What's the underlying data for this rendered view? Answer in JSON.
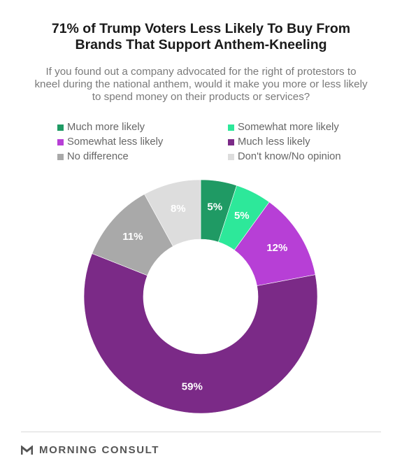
{
  "header": {
    "title_line1": "71% of Trump Voters Less Likely To Buy From",
    "title_line2": "Brands That Support Anthem-Kneeling",
    "subtitle_line1": "If you found out a company advocated for the right of protestors to",
    "subtitle_line2": "kneel during the national anthem, would it make you more or less likely",
    "subtitle_line3": "to spend money on their products or services?"
  },
  "chart_data": {
    "type": "pie",
    "variant": "donut",
    "legend_placement": "top",
    "labels": [
      "Much more likely",
      "Somewhat more likely",
      "Somewhat less likely",
      "Much less likely",
      "No difference",
      "Don't know/No opinion"
    ],
    "values": [
      5,
      5,
      12,
      59,
      11,
      8
    ],
    "value_labels": [
      "5%",
      "5%",
      "12%",
      "59%",
      "11%",
      "8%"
    ],
    "colors": [
      "#1f9a64",
      "#2de89a",
      "#b73fd6",
      "#7b2a87",
      "#a9a9a9",
      "#dddddd"
    ]
  },
  "footer": {
    "brand": "MORNING CONSULT"
  }
}
